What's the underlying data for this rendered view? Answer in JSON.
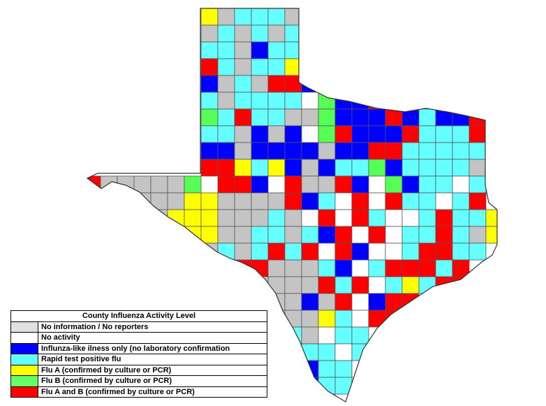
{
  "legend": {
    "title": "County Influenza Activity Level",
    "items": [
      {
        "code": "g",
        "label": "No information / No reporters",
        "color": "#e0e0e0"
      },
      {
        "code": "w",
        "label": "No activity",
        "color": "#ffffff"
      },
      {
        "code": "b",
        "label": "Influnza-like ilness only (no laboratory confirmation",
        "color": "#0000ff"
      },
      {
        "code": "c",
        "label": "Rapid test positive flu",
        "color": "#66ffff"
      },
      {
        "code": "y",
        "label": "Flu A (confirmed by culture or PCR)",
        "color": "#ffff00"
      },
      {
        "code": "l",
        "label": "Flu B (confirmed by culture or PCR)",
        "color": "#66ff66"
      },
      {
        "code": "r",
        "label": "Flu A and B (confirmed by culture or PCR)",
        "color": "#ff0000"
      }
    ]
  },
  "map_colors": {
    "g": "#c4c4c4",
    "w": "#ffffff",
    "b": "#0000ff",
    "c": "#66ffff",
    "y": "#ffff00",
    "l": "#55ff55",
    "r": "#ff0000"
  },
  "county_grid": [
    ".......ygcccg............",
    ".......gcgcgc............",
    ".......ccgbcc............",
    ".......rcgccy............",
    ".......bgcgrrb...........",
    ".......cgccccwlbbrlbcbyg.",
    ".......lcrccgglbbbrbcbbrr",
    ".......ccgbgbwlrbbbrcccrr",
    ".......bbgbbbbgbbrrcccccc",
    ".......rrycybgbcclbccccgc",
    "rgggggl rrbwrggrbwlbccwccl",
    "..ggggyyggggrbcwrwrccwcr",
    "...ggyyygggcgwrwrcwwcrccy",
    "....ggyyggccgcbrwrwccrcgy",
    ".....gggcgcrcrwrbwwcrrcc.",
    ".........rrgggcbwcrrrcr..",
    "..........ggggrcrwcycrr..",
    "..........yggbgrwbrr.....",
    "...........gggycwrr......",
    "...........ccgwcc........",
    "............cccwc........",
    "............wbccw........",
    ".............bcc.........",
    ".............cc.........."
  ]
}
